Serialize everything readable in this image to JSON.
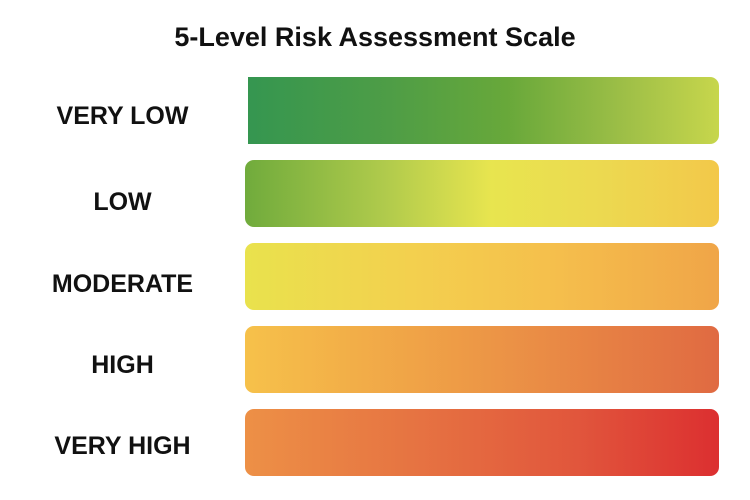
{
  "title": "5-Level Risk Assessment Scale",
  "levels": [
    {
      "label": "VERY LOW",
      "colors": [
        "#359650",
        "#c7d64c"
      ]
    },
    {
      "label": "LOW",
      "colors": [
        "#70ab3c",
        "#e8e54f",
        "#f3c84a"
      ]
    },
    {
      "label": "MODERATE",
      "colors": [
        "#e9e24d",
        "#f0a548"
      ]
    },
    {
      "label": "HIGH",
      "colors": [
        "#f6c14a",
        "#e06a42"
      ]
    },
    {
      "label": "VERY HIGH",
      "colors": [
        "#ed9046",
        "#dc2f30"
      ]
    }
  ]
}
